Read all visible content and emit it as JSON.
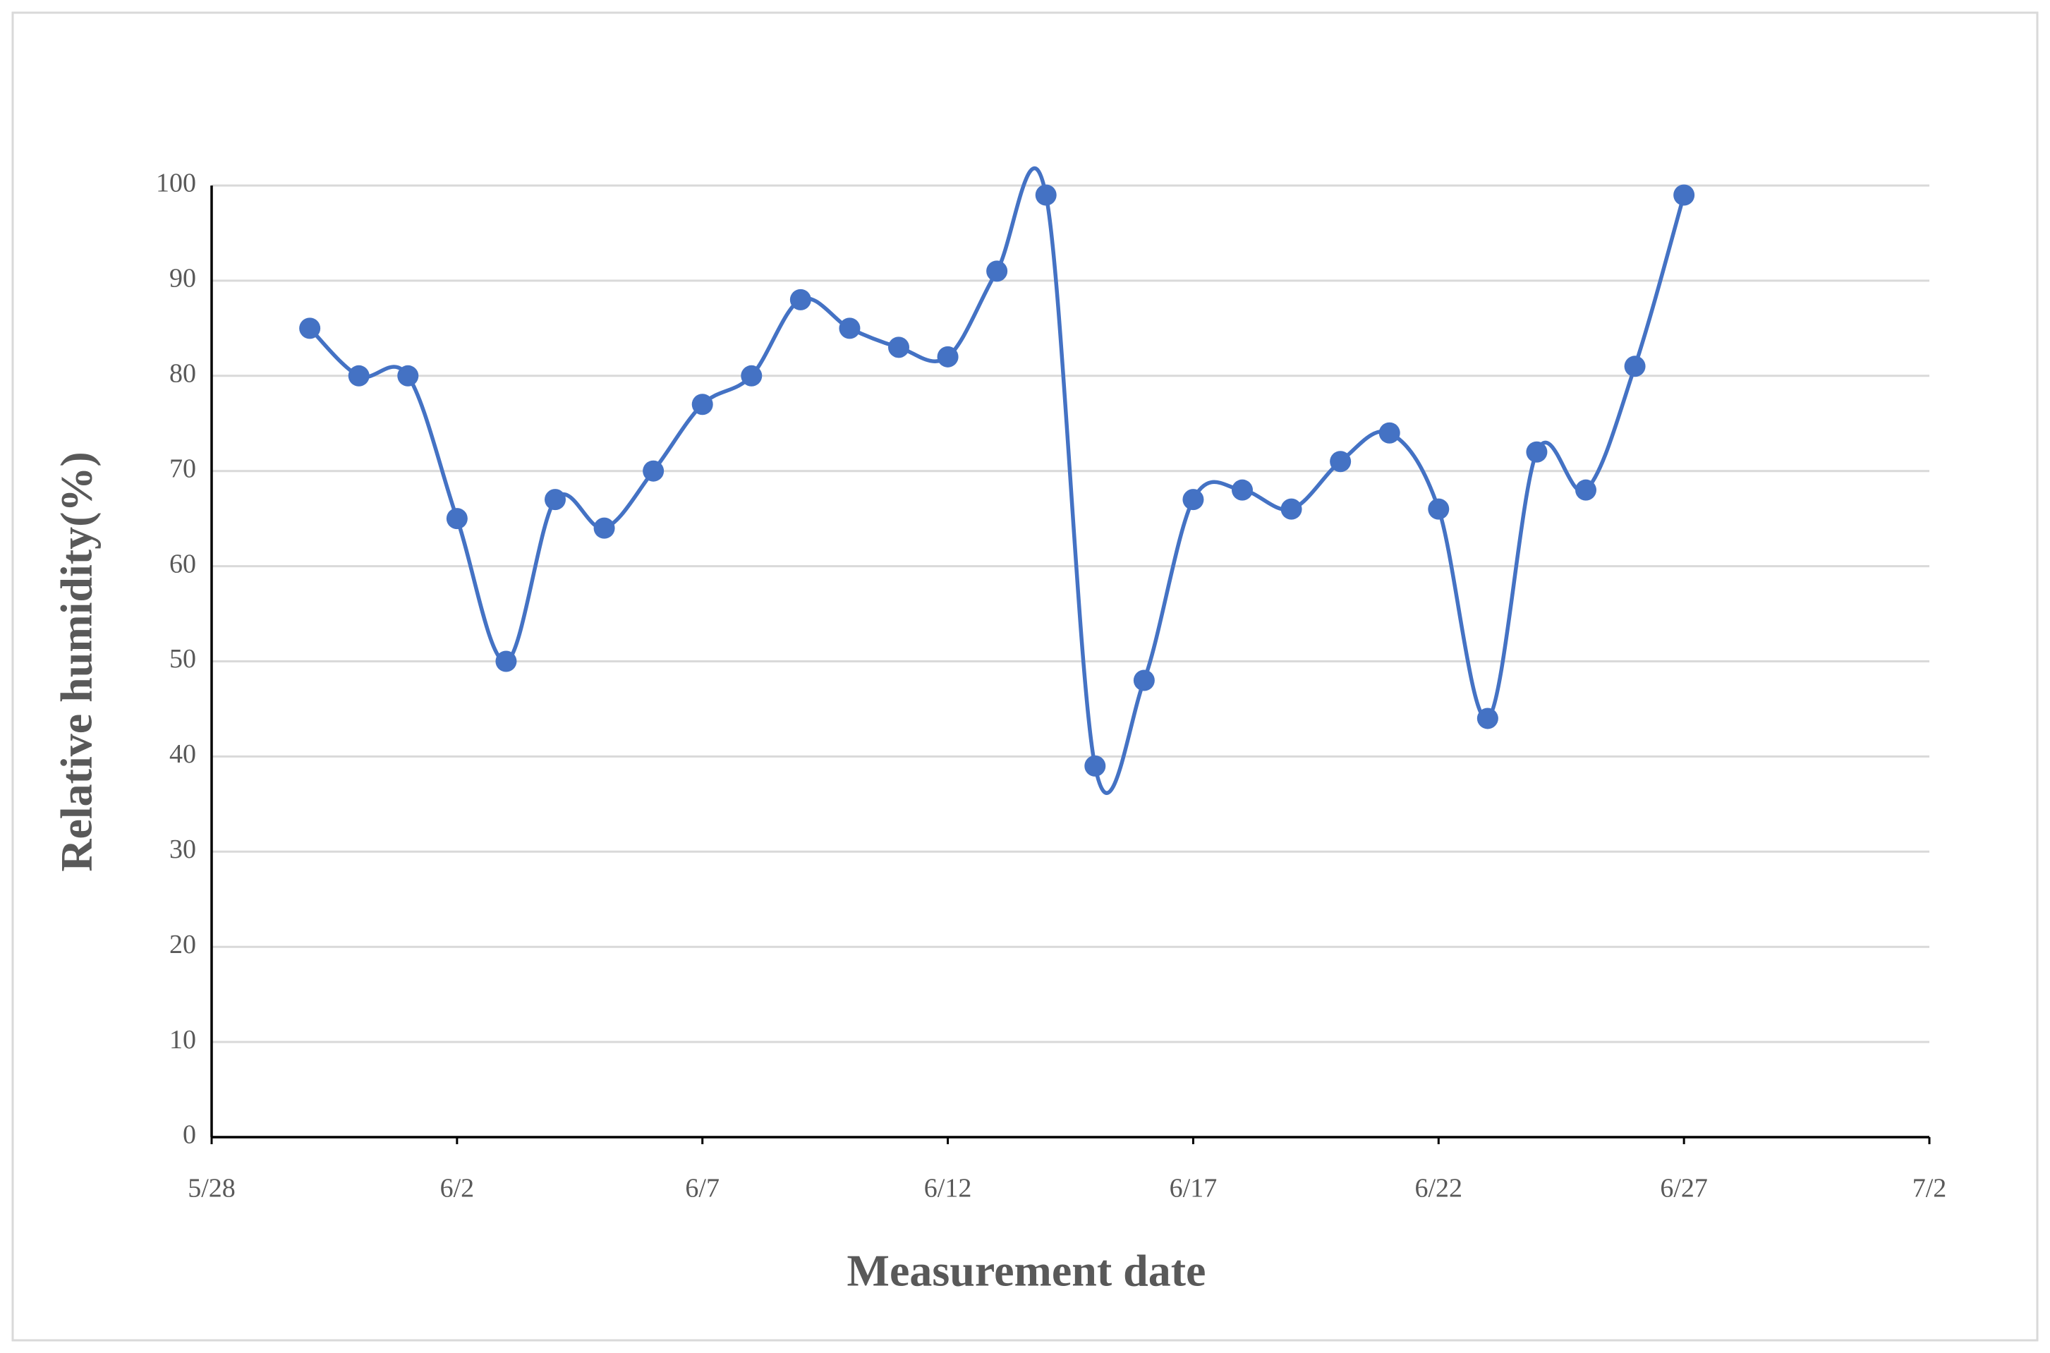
{
  "chart_data": {
    "type": "line",
    "x_title": "Measurement date",
    "y_title": "Relative humidity(%)",
    "x": [
      "5/30",
      "5/31",
      "6/1",
      "6/2",
      "6/3",
      "6/4",
      "6/5",
      "6/6",
      "6/7",
      "6/8",
      "6/9",
      "6/10",
      "6/11",
      "6/12",
      "6/13",
      "6/14",
      "6/15",
      "6/16",
      "6/17",
      "6/18",
      "6/19",
      "6/20",
      "6/21",
      "6/22",
      "6/23",
      "6/24",
      "6/25",
      "6/26",
      "6/27"
    ],
    "series": [
      {
        "color": "#4472c4",
        "values": [
          85,
          80,
          80,
          65,
          50,
          67,
          64,
          70,
          77,
          80,
          88,
          85,
          83,
          82,
          91,
          99,
          39,
          48,
          67,
          68,
          66,
          71,
          74,
          66,
          44,
          72,
          68,
          81,
          99
        ]
      }
    ],
    "xlim": [
      "5/28",
      "7/2"
    ],
    "xticks": [
      "5/28",
      "6/2",
      "6/7",
      "6/12",
      "6/17",
      "6/22",
      "6/27",
      "7/2"
    ],
    "ylim": [
      0,
      100
    ],
    "yticks": [
      0,
      10,
      20,
      30,
      40,
      50,
      60,
      70,
      80,
      90,
      100
    ],
    "grid": true,
    "smooth": true
  }
}
